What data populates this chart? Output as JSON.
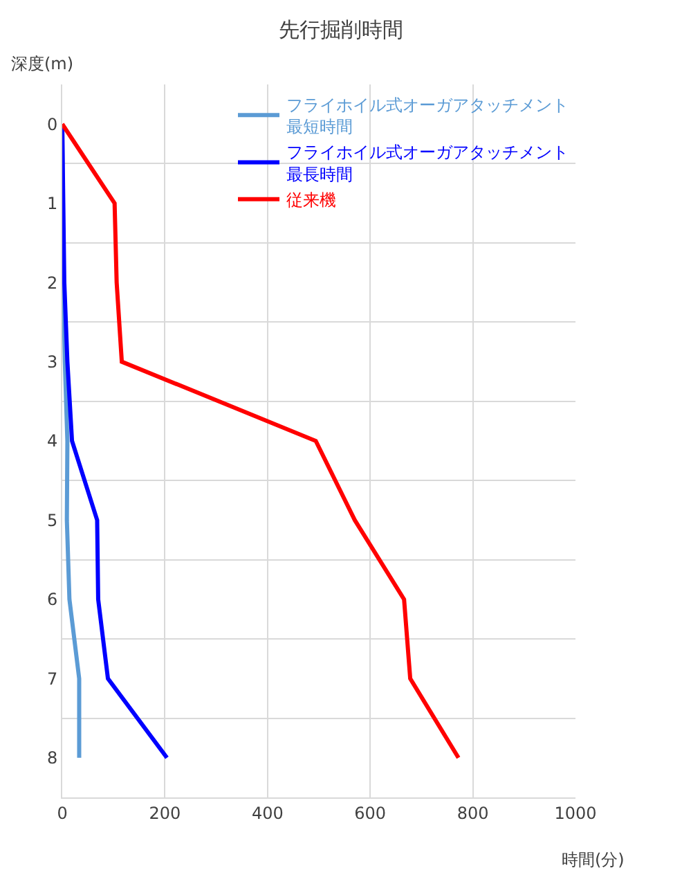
{
  "chart_data": {
    "type": "line",
    "title": "先行掘削時間",
    "xlabel": "時間(分)",
    "ylabel": "深度(m)",
    "xlim": [
      0,
      1000
    ],
    "xticks": [
      0,
      200,
      400,
      600,
      800,
      1000
    ],
    "ylim": [
      8.5,
      -0.5
    ],
    "yticks": [
      0,
      1,
      2,
      3,
      4,
      5,
      6,
      7,
      8
    ],
    "grid": true,
    "legend": "top right",
    "marker": "none",
    "line_style": "solid",
    "series": [
      {
        "name": "フライホイル式オーガアタッチメント最短時間",
        "color": "#5b9bd5",
        "x": [
          0,
          1,
          2,
          5,
          10,
          9,
          14,
          33,
          33
        ],
        "values": [
          0,
          1,
          2,
          3,
          4,
          5,
          6,
          7,
          8
        ]
      },
      {
        "name": "フライホイル式オーガアタッチメント最長時間",
        "color": "#0000ff",
        "x": [
          0,
          2,
          4,
          10,
          19,
          68,
          70,
          89,
          204
        ],
        "values": [
          0,
          1,
          2,
          3,
          4,
          5,
          6,
          7,
          8
        ]
      },
      {
        "name": "従来機",
        "color": "#ff0000",
        "x": [
          0,
          102,
          106,
          116,
          494,
          570,
          666,
          678,
          772
        ],
        "values": [
          0,
          1,
          2,
          3,
          4,
          5,
          6,
          7,
          8
        ]
      }
    ]
  }
}
